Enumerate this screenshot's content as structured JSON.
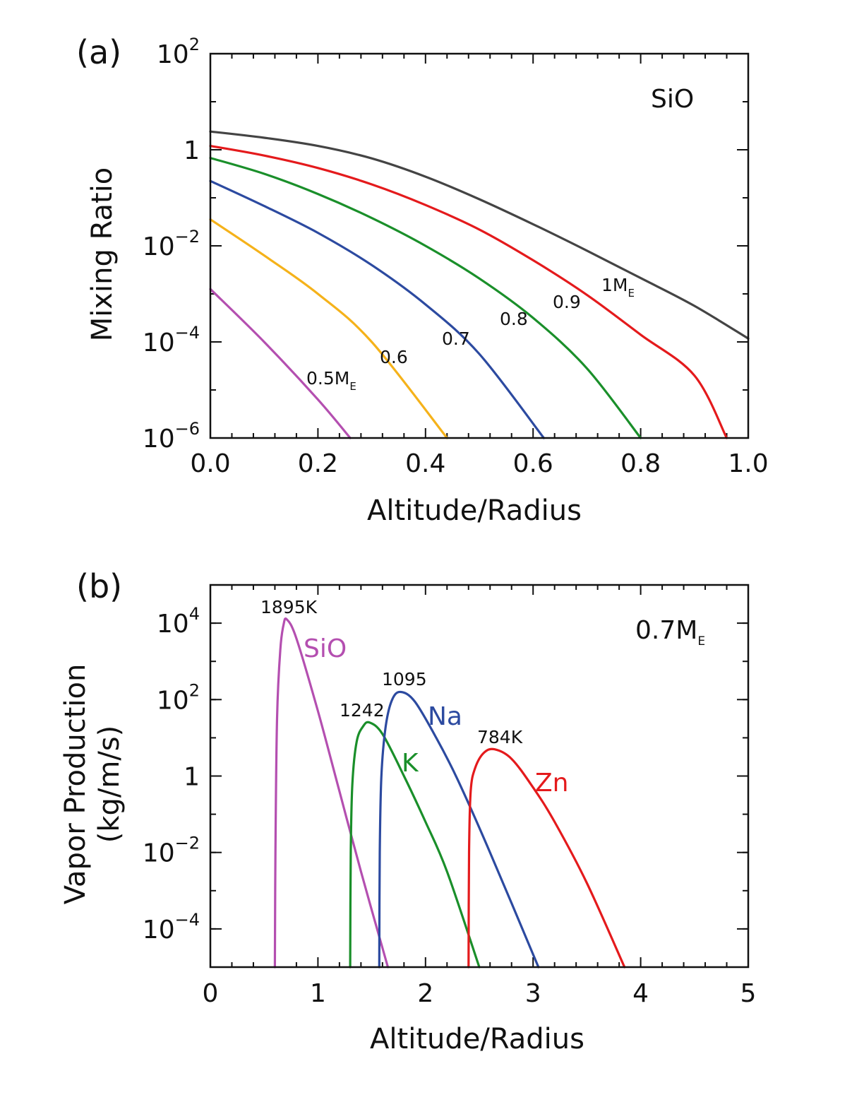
{
  "chart_data": [
    {
      "id": "a",
      "type": "line",
      "panel_label": "(a)",
      "xlabel": "Altitude/Radius",
      "ylabel": "Mixing Ratio",
      "yscale": "log",
      "xlim": [
        0.0,
        1.0
      ],
      "ylim_exp": [
        -6,
        2
      ],
      "x_ticks": [
        "0.0",
        "0.2",
        "0.4",
        "0.6",
        "0.8",
        "1.0"
      ],
      "y_ticks": [
        {
          "base": "10",
          "exp": "2"
        },
        {
          "base": "1",
          "exp": ""
        },
        {
          "base": "10",
          "exp": "−2"
        },
        {
          "base": "10",
          "exp": "−4"
        },
        {
          "base": "10",
          "exp": "−6"
        }
      ],
      "annotation": "SiO",
      "series": [
        {
          "name": "1M",
          "sub": "E",
          "color": "#444444",
          "x": [
            0.0,
            0.1,
            0.2,
            0.3,
            0.4,
            0.5,
            0.6,
            0.7,
            0.8,
            0.9,
            1.0
          ],
          "log10y": [
            0.38,
            0.25,
            0.08,
            -0.18,
            -0.56,
            -1.03,
            -1.55,
            -2.1,
            -2.67,
            -3.25,
            -3.93
          ]
        },
        {
          "name": "0.9",
          "sub": "",
          "color": "#e41a1c",
          "x": [
            0.0,
            0.1,
            0.2,
            0.3,
            0.4,
            0.5,
            0.6,
            0.7,
            0.8,
            0.9,
            0.96
          ],
          "log10y": [
            0.08,
            -0.12,
            -0.38,
            -0.72,
            -1.15,
            -1.66,
            -2.3,
            -3.02,
            -3.85,
            -4.7,
            -6.0
          ]
        },
        {
          "name": "0.8",
          "sub": "",
          "color": "#1a8f2a",
          "x": [
            0.0,
            0.1,
            0.2,
            0.3,
            0.4,
            0.5,
            0.6,
            0.7,
            0.8
          ],
          "log10y": [
            -0.17,
            -0.5,
            -0.92,
            -1.42,
            -2.0,
            -2.68,
            -3.5,
            -4.55,
            -6.0
          ]
        },
        {
          "name": "0.7",
          "sub": "",
          "color": "#2c4aa0",
          "x": [
            0.0,
            0.1,
            0.2,
            0.3,
            0.4,
            0.5,
            0.62
          ],
          "log10y": [
            -0.65,
            -1.17,
            -1.73,
            -2.4,
            -3.22,
            -4.25,
            -6.0
          ]
        },
        {
          "name": "0.6",
          "sub": "",
          "color": "#f5b21a",
          "x": [
            0.0,
            0.1,
            0.2,
            0.3,
            0.44
          ],
          "log10y": [
            -1.45,
            -2.2,
            -3.0,
            -4.0,
            -6.0
          ]
        },
        {
          "name": "0.5M",
          "sub": "E",
          "color": "#b44fb0",
          "x": [
            0.0,
            0.1,
            0.2,
            0.26
          ],
          "log10y": [
            -2.9,
            -4.0,
            -5.2,
            -6.0
          ]
        }
      ]
    },
    {
      "id": "b",
      "type": "line",
      "panel_label": "(b)",
      "xlabel": "Altitude/Radius",
      "ylabel": [
        "Vapor Production",
        "(kg/m/s)"
      ],
      "yscale": "log",
      "xlim": [
        0,
        5
      ],
      "ylim_exp": [
        -5,
        5
      ],
      "x_ticks": [
        "0",
        "1",
        "2",
        "3",
        "4",
        "5"
      ],
      "y_ticks": [
        {
          "base": "10",
          "exp": "4"
        },
        {
          "base": "10",
          "exp": "2"
        },
        {
          "base": "1",
          "exp": ""
        },
        {
          "base": "10",
          "exp": "−2"
        },
        {
          "base": "10",
          "exp": "−4"
        }
      ],
      "annotation": {
        "text": "0.7M",
        "sub": "E"
      },
      "series": [
        {
          "name": "SiO",
          "peak_label": "1895K",
          "color": "#b44fb0",
          "x": [
            0.6,
            0.605,
            0.62,
            0.65,
            0.68,
            0.71,
            0.8,
            1.0,
            1.2,
            1.4,
            1.65
          ],
          "log10y": [
            -5.0,
            -2.0,
            1.5,
            3.3,
            3.95,
            4.1,
            3.6,
            1.7,
            -0.4,
            -2.5,
            -5.0
          ]
        },
        {
          "name": "K",
          "peak_label": "1242",
          "color": "#1a8f2a",
          "x": [
            1.3,
            1.305,
            1.32,
            1.36,
            1.42,
            1.48,
            1.6,
            1.8,
            2.0,
            2.2,
            2.5
          ],
          "log10y": [
            -5.0,
            -2.0,
            -0.2,
            0.9,
            1.3,
            1.4,
            1.1,
            0.0,
            -1.2,
            -2.5,
            -5.0
          ]
        },
        {
          "name": "Na",
          "peak_label": "1095",
          "color": "#2c4aa0",
          "x": [
            1.57,
            1.575,
            1.59,
            1.63,
            1.69,
            1.77,
            1.9,
            2.1,
            2.3,
            2.6,
            3.05
          ],
          "log10y": [
            -5.0,
            -2.0,
            0.0,
            1.3,
            2.0,
            2.2,
            1.95,
            1.0,
            -0.1,
            -2.0,
            -5.0
          ]
        },
        {
          "name": "Zn",
          "peak_label": "784K",
          "color": "#e41a1c",
          "x": [
            2.4,
            2.405,
            2.42,
            2.46,
            2.54,
            2.64,
            2.8,
            3.0,
            3.2,
            3.5,
            3.85
          ],
          "log10y": [
            -5.0,
            -2.0,
            -0.4,
            0.2,
            0.6,
            0.7,
            0.45,
            -0.3,
            -1.2,
            -2.8,
            -5.0
          ]
        }
      ]
    }
  ]
}
